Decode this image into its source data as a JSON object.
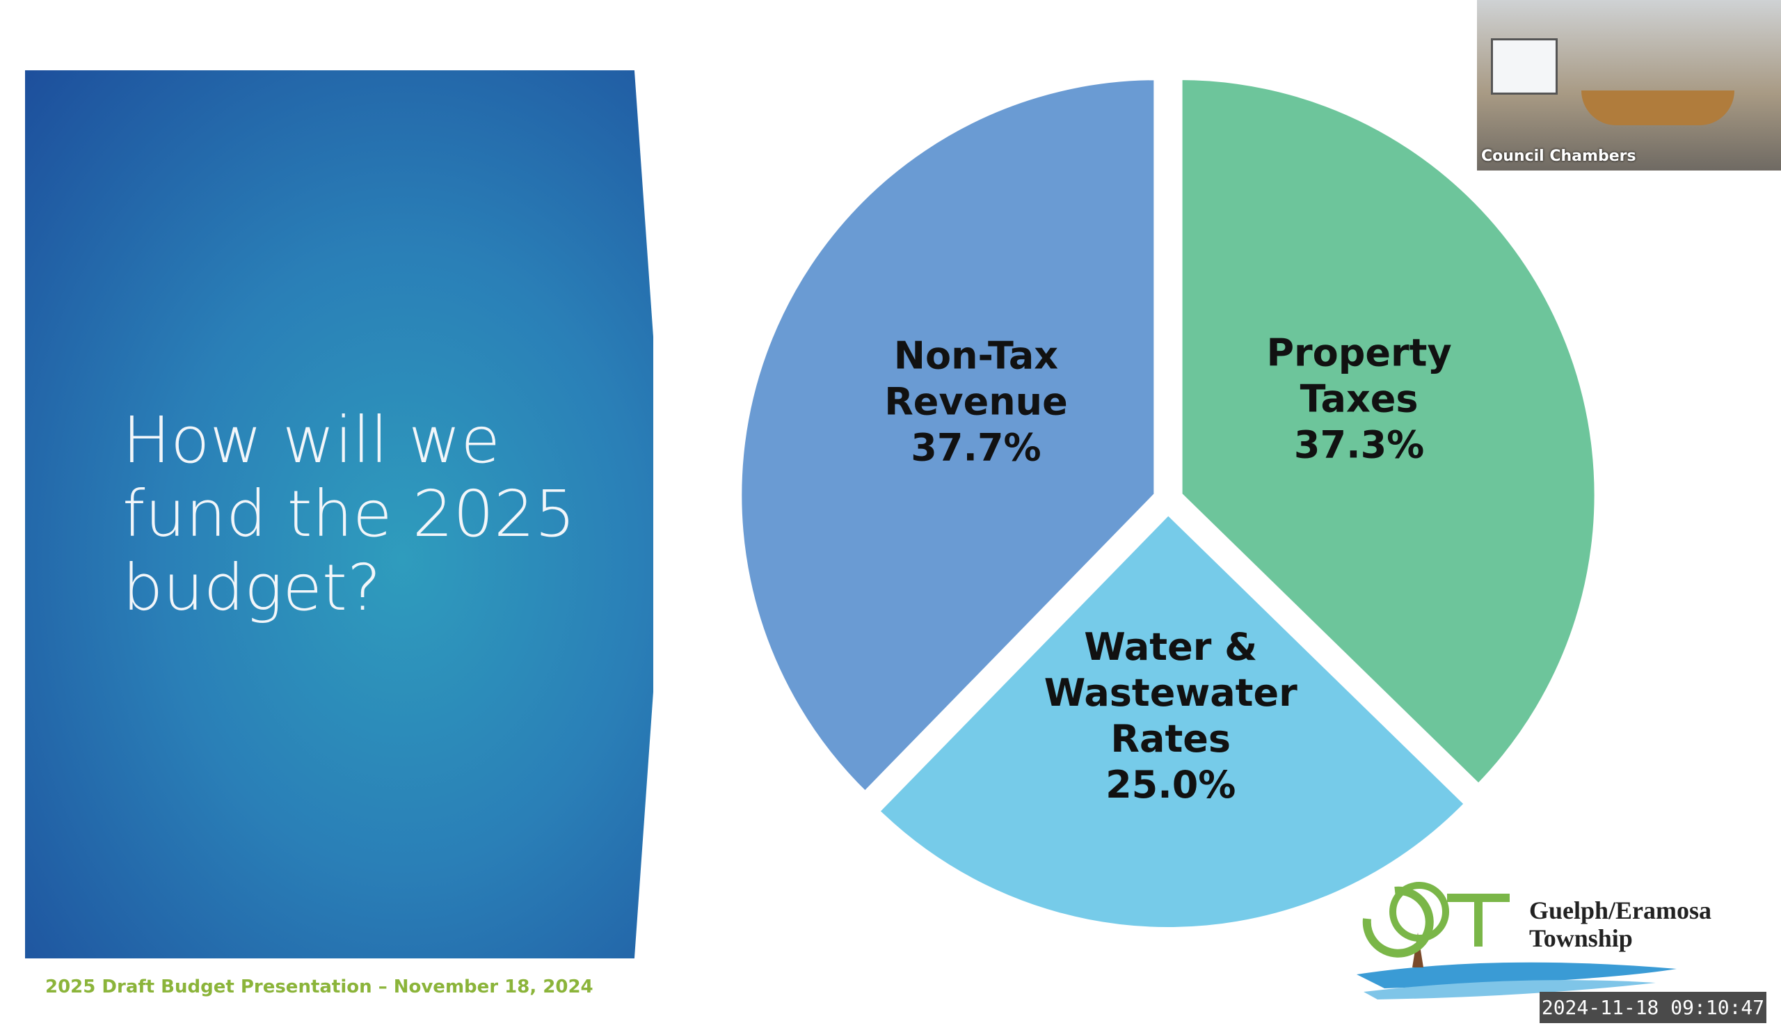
{
  "chart_data": {
    "type": "pie",
    "title": "How will we fund the 2025 budget?",
    "categories": [
      "Property Taxes",
      "Water & Wastewater Rates",
      "Non-Tax Revenue"
    ],
    "values": [
      37.3,
      25.0,
      37.7
    ],
    "value_labels": [
      "37.3%",
      "25.0%",
      "37.7%"
    ],
    "colors": [
      "#6dc59b",
      "#76cbe9",
      "#6a9bd3"
    ]
  },
  "slide": {
    "footer": "2025 Draft Budget Presentation – November 18, 2024",
    "organization": "Guelph/Eramosa Township"
  },
  "video": {
    "label": "Council Chambers",
    "timestamp": "2024-11-18  09:10:47"
  }
}
